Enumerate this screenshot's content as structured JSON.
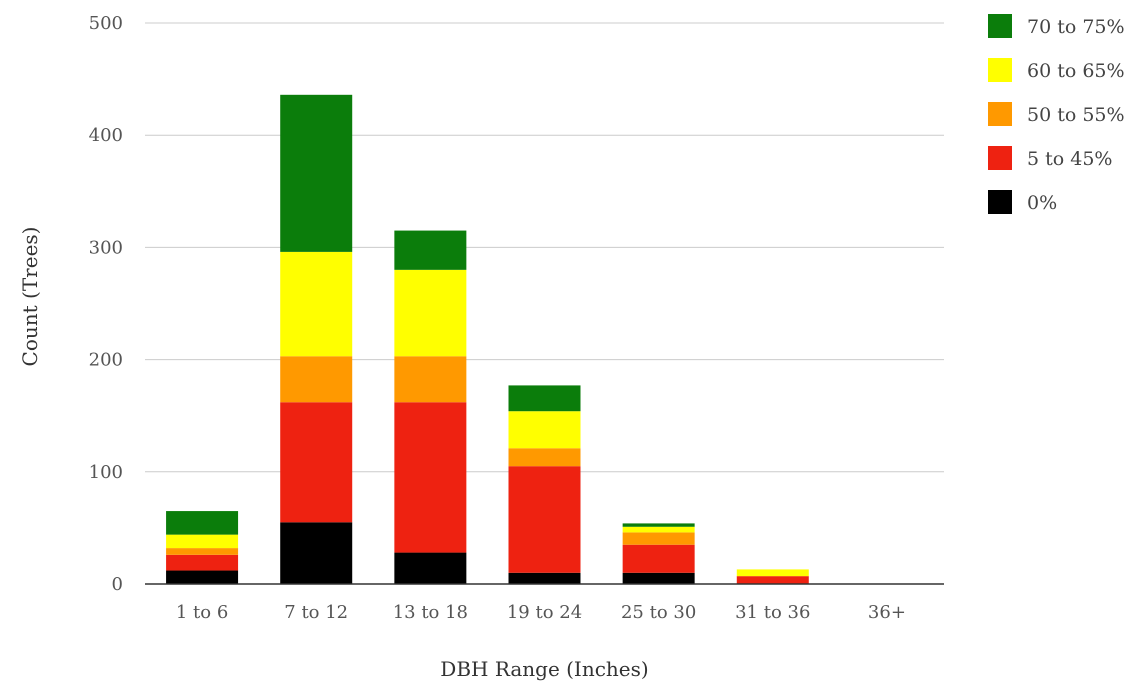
{
  "chart_data": {
    "type": "bar",
    "stacked": true,
    "title": "",
    "xlabel": "DBH Range (Inches)",
    "ylabel": "Count (Trees)",
    "ylim": [
      0,
      500
    ],
    "yticks": [
      "0",
      "100",
      "200",
      "300",
      "400",
      "500"
    ],
    "grid": true,
    "legend_position": "right",
    "categories": [
      "1 to 6",
      "7 to 12",
      "13 to 18",
      "19 to 24",
      "25 to 30",
      "31 to 36",
      "36+"
    ],
    "series": [
      {
        "name": "0%",
        "color": "#000000",
        "values": [
          12,
          55,
          28,
          10,
          10,
          0,
          0
        ]
      },
      {
        "name": "5 to 45%",
        "color": "#ee2211",
        "values": [
          14,
          107,
          134,
          95,
          25,
          7,
          0
        ]
      },
      {
        "name": "50 to 55%",
        "color": "#ff9900",
        "values": [
          6,
          41,
          41,
          16,
          11,
          0,
          0
        ]
      },
      {
        "name": "60 to 65%",
        "color": "#ffff00",
        "values": [
          12,
          93,
          77,
          33,
          5,
          6,
          0
        ]
      },
      {
        "name": "70 to 75%",
        "color": "#0b7d0b",
        "values": [
          21,
          140,
          35,
          23,
          3,
          0,
          0
        ]
      }
    ],
    "legend_order": [
      4,
      3,
      2,
      1,
      0
    ]
  }
}
